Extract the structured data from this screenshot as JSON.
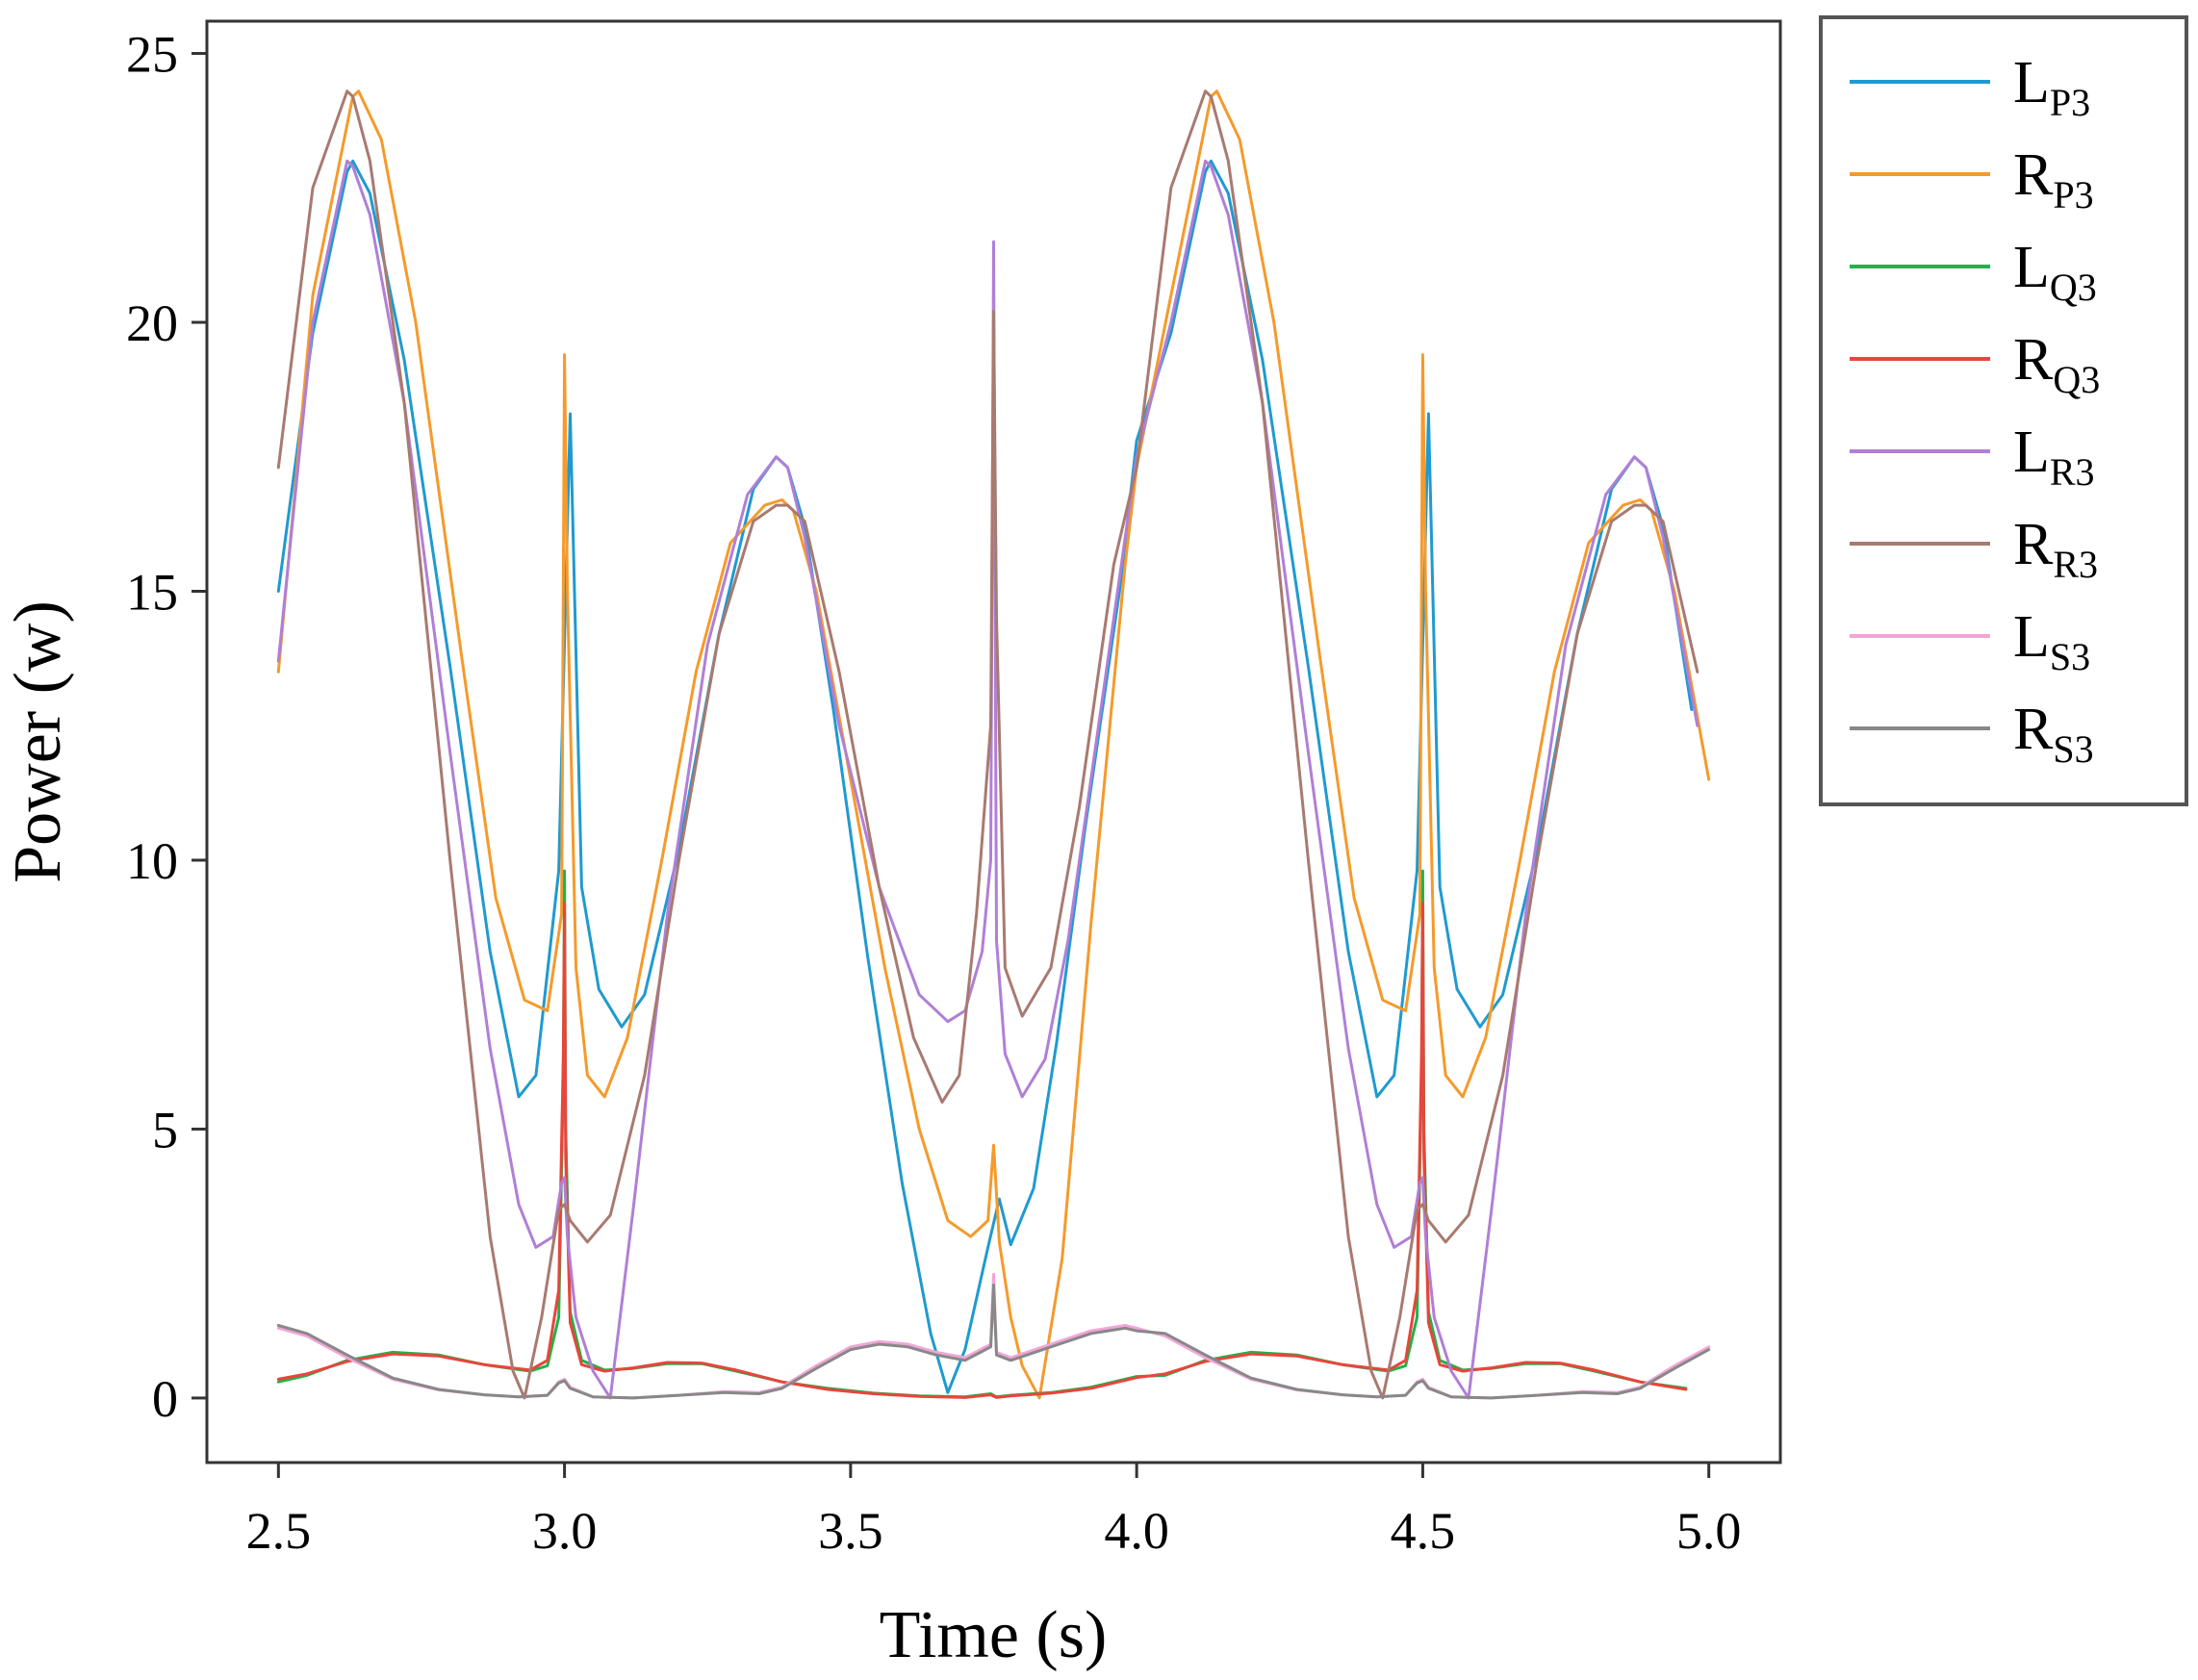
{
  "chart_data": {
    "type": "line",
    "title": "",
    "xlabel": "Time (s)",
    "ylabel": "Power (w)",
    "xlim": [
      2.375,
      5.125
    ],
    "ylim": [
      -1.2,
      25.6
    ],
    "xticks": [
      2.5,
      3.0,
      3.5,
      4.0,
      4.5,
      5.0
    ],
    "xtick_labels": [
      "2.5",
      "3.0",
      "3.5",
      "4.0",
      "4.5",
      "5.0"
    ],
    "yticks": [
      0,
      5,
      10,
      15,
      20,
      25
    ],
    "ytick_labels": [
      "0",
      "5",
      "10",
      "15",
      "20",
      "25"
    ],
    "grid": false,
    "legend_position": "outside-right-top",
    "period": 1.5,
    "series": [
      {
        "name": "LP3",
        "main": "L",
        "sub": "P3",
        "color": "#1f9ad0",
        "x": [
          2.5,
          2.56,
          2.62,
          2.63,
          2.66,
          2.72,
          2.8,
          2.87,
          2.92,
          2.95,
          2.99,
          3.01,
          3.03,
          3.06,
          3.1,
          3.14,
          3.2,
          3.27,
          3.33,
          3.37,
          3.39,
          3.42,
          3.47,
          3.53,
          3.59,
          3.64,
          3.67,
          3.7,
          3.74,
          3.76,
          3.78,
          3.82,
          3.86,
          3.91,
          3.97,
          4.0
        ],
        "y": [
          15.0,
          19.8,
          22.8,
          23.0,
          22.4,
          19.3,
          13.6,
          8.3,
          5.6,
          6.0,
          9.8,
          18.3,
          9.5,
          7.6,
          6.9,
          7.5,
          10.2,
          14.2,
          16.9,
          17.5,
          17.3,
          16.2,
          12.8,
          8.2,
          4.0,
          1.2,
          0.1,
          0.9,
          2.8,
          3.7,
          2.85,
          3.9,
          6.6,
          10.6,
          15.0,
          17.8
        ]
      },
      {
        "name": "RP3",
        "main": "R",
        "sub": "P3",
        "color": "#f59a2b",
        "x": [
          2.5,
          2.56,
          2.63,
          2.64,
          2.68,
          2.74,
          2.82,
          2.88,
          2.93,
          2.97,
          2.995,
          3.0,
          3.005,
          3.02,
          3.04,
          3.07,
          3.11,
          3.17,
          3.23,
          3.29,
          3.35,
          3.38,
          3.4,
          3.44,
          3.5,
          3.56,
          3.62,
          3.67,
          3.71,
          3.74,
          3.75,
          3.76,
          3.78,
          3.8,
          3.83,
          3.87,
          3.92,
          3.98,
          4.0
        ],
        "y": [
          13.5,
          20.5,
          24.2,
          24.3,
          23.4,
          20.0,
          13.8,
          9.3,
          7.4,
          7.2,
          9.0,
          19.4,
          15.0,
          8.0,
          6.0,
          5.6,
          6.7,
          10.0,
          13.5,
          15.9,
          16.6,
          16.7,
          16.5,
          15.0,
          11.5,
          8.0,
          5.0,
          3.3,
          3.0,
          3.3,
          4.7,
          2.9,
          1.5,
          0.6,
          0.0,
          2.6,
          8.8,
          15.5,
          17.3
        ]
      },
      {
        "name": "LQ3",
        "main": "L",
        "sub": "Q3",
        "color": "#22b24a",
        "x": [
          2.5,
          2.55,
          2.62,
          2.7,
          2.78,
          2.86,
          2.94,
          2.97,
          2.99,
          2.998,
          3.0,
          3.002,
          3.01,
          3.03,
          3.07,
          3.12,
          3.18,
          3.24,
          3.3,
          3.38,
          3.46,
          3.54,
          3.62,
          3.7,
          3.745,
          3.755,
          3.78,
          3.85,
          3.92,
          4.0
        ],
        "y": [
          0.3,
          0.42,
          0.7,
          0.85,
          0.8,
          0.62,
          0.5,
          0.6,
          1.5,
          6.0,
          9.8,
          5.0,
          1.6,
          0.7,
          0.52,
          0.55,
          0.64,
          0.64,
          0.5,
          0.3,
          0.18,
          0.09,
          0.04,
          0.02,
          0.08,
          0.02,
          0.05,
          0.1,
          0.2,
          0.4
        ]
      },
      {
        "name": "RQ3",
        "main": "R",
        "sub": "Q3",
        "color": "#e8453c",
        "x": [
          2.5,
          2.55,
          2.62,
          2.7,
          2.78,
          2.86,
          2.94,
          2.97,
          2.99,
          2.998,
          3.0,
          3.002,
          3.01,
          3.03,
          3.07,
          3.12,
          3.18,
          3.24,
          3.3,
          3.38,
          3.46,
          3.54,
          3.62,
          3.7,
          3.745,
          3.755,
          3.78,
          3.85,
          3.92,
          4.0
        ],
        "y": [
          0.35,
          0.45,
          0.68,
          0.82,
          0.78,
          0.62,
          0.52,
          0.7,
          2.0,
          6.4,
          9.2,
          4.5,
          1.4,
          0.62,
          0.5,
          0.56,
          0.66,
          0.65,
          0.52,
          0.3,
          0.16,
          0.08,
          0.03,
          0.01,
          0.06,
          0.01,
          0.04,
          0.09,
          0.18,
          0.38
        ]
      },
      {
        "name": "LR3",
        "main": "L",
        "sub": "R3",
        "color": "#b07fd6",
        "x": [
          2.5,
          2.56,
          2.62,
          2.63,
          2.66,
          2.72,
          2.8,
          2.87,
          2.92,
          2.95,
          2.98,
          2.995,
          3.0,
          3.005,
          3.02,
          3.05,
          3.08,
          3.12,
          3.18,
          3.25,
          3.32,
          3.37,
          3.39,
          3.42,
          3.48,
          3.55,
          3.62,
          3.67,
          3.7,
          3.73,
          3.745,
          3.75,
          3.755,
          3.77,
          3.8,
          3.84,
          3.88,
          3.94,
          4.0
        ],
        "y": [
          13.7,
          20.0,
          23.0,
          22.9,
          22.0,
          18.5,
          12.0,
          6.5,
          3.6,
          2.8,
          3.0,
          4.0,
          4.1,
          3.0,
          1.5,
          0.5,
          0.0,
          3.5,
          9.0,
          14.0,
          16.8,
          17.5,
          17.3,
          16.0,
          12.5,
          9.5,
          7.5,
          7.0,
          7.2,
          8.3,
          10.0,
          21.5,
          8.5,
          6.4,
          5.6,
          6.3,
          8.5,
          13.0,
          17.5
        ]
      },
      {
        "name": "RR3",
        "main": "R",
        "sub": "R3",
        "color": "#a87a70",
        "x": [
          2.5,
          2.56,
          2.62,
          2.63,
          2.66,
          2.72,
          2.8,
          2.87,
          2.91,
          2.93,
          2.96,
          2.99,
          3.0,
          3.01,
          3.04,
          3.08,
          3.14,
          3.2,
          3.27,
          3.33,
          3.37,
          3.39,
          3.42,
          3.48,
          3.55,
          3.61,
          3.66,
          3.69,
          3.72,
          3.745,
          3.75,
          3.755,
          3.77,
          3.8,
          3.85,
          3.9,
          3.96,
          4.0
        ],
        "y": [
          17.3,
          22.5,
          24.3,
          24.2,
          23.0,
          18.5,
          10.0,
          3.0,
          0.5,
          0.0,
          1.5,
          3.5,
          3.6,
          3.3,
          2.9,
          3.4,
          6.0,
          10.0,
          14.2,
          16.3,
          16.6,
          16.6,
          16.3,
          13.5,
          9.5,
          6.7,
          5.5,
          6.0,
          9.0,
          12.5,
          20.2,
          14.5,
          8.0,
          7.1,
          8.0,
          11.0,
          15.5,
          17.3
        ]
      },
      {
        "name": "LS3",
        "main": "L",
        "sub": "S3",
        "color": "#f2a6d8",
        "x": [
          2.5,
          2.55,
          2.62,
          2.7,
          2.78,
          2.86,
          2.92,
          2.97,
          2.99,
          3.0,
          3.01,
          3.05,
          3.12,
          3.2,
          3.28,
          3.34,
          3.38,
          3.44,
          3.5,
          3.55,
          3.6,
          3.65,
          3.7,
          3.745,
          3.75,
          3.755,
          3.78,
          3.85,
          3.92,
          3.98,
          4.0
        ],
        "y": [
          1.3,
          1.15,
          0.75,
          0.35,
          0.15,
          0.06,
          0.02,
          0.05,
          0.3,
          0.35,
          0.2,
          0.02,
          0.0,
          0.05,
          0.12,
          0.1,
          0.2,
          0.6,
          0.95,
          1.05,
          1.0,
          0.85,
          0.75,
          1.0,
          2.3,
          0.85,
          0.75,
          1.0,
          1.25,
          1.35,
          1.3
        ]
      },
      {
        "name": "RS3",
        "main": "R",
        "sub": "S3",
        "color": "#888888",
        "x": [
          2.5,
          2.55,
          2.62,
          2.7,
          2.78,
          2.86,
          2.92,
          2.97,
          2.99,
          3.0,
          3.01,
          3.05,
          3.12,
          3.2,
          3.28,
          3.34,
          3.38,
          3.44,
          3.5,
          3.55,
          3.6,
          3.65,
          3.7,
          3.745,
          3.75,
          3.755,
          3.78,
          3.85,
          3.92,
          3.98,
          4.0
        ],
        "y": [
          1.35,
          1.2,
          0.8,
          0.37,
          0.16,
          0.06,
          0.02,
          0.05,
          0.28,
          0.32,
          0.18,
          0.02,
          0.0,
          0.05,
          0.1,
          0.08,
          0.18,
          0.55,
          0.9,
          1.0,
          0.95,
          0.8,
          0.7,
          0.95,
          2.1,
          0.8,
          0.7,
          0.95,
          1.2,
          1.3,
          1.25
        ]
      }
    ]
  }
}
